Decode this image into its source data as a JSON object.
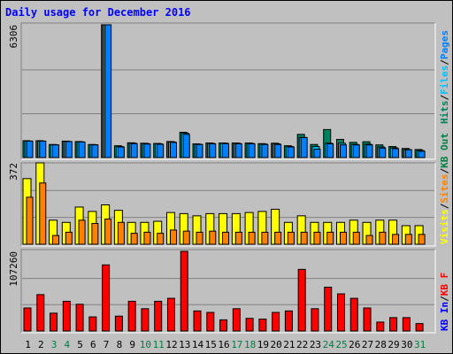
{
  "title": "Daily usage for December 2016",
  "colors": {
    "pages": "#0080ff",
    "files": "#00c0ff",
    "hits": "#00805c",
    "visits": "#ffff00",
    "sites": "#ff8000",
    "kbin": "#0000ff",
    "kbout": "#008040",
    "kbf": "#ff0000",
    "title": "#0000ff",
    "weekend": "#008040",
    "weekday": "#000000"
  },
  "legends": {
    "top": [
      "Hits",
      "Files",
      "Pages"
    ],
    "mid": [
      "Visits",
      "Sites",
      "KB Out"
    ],
    "bot": [
      "KB In",
      "KB F"
    ]
  },
  "chart_data": [
    {
      "type": "bar",
      "panel": "hits-files-pages",
      "ymax_label": "6306",
      "ylim": [
        0,
        6306
      ],
      "categories": [
        "1",
        "2",
        "3",
        "4",
        "5",
        "6",
        "7",
        "8",
        "9",
        "10",
        "11",
        "12",
        "13",
        "14",
        "15",
        "16",
        "17",
        "18",
        "19",
        "20",
        "21",
        "22",
        "23",
        "24",
        "25",
        "26",
        "27",
        "28",
        "29",
        "30",
        "31"
      ],
      "series": [
        {
          "name": "Hits",
          "values": [
            800,
            800,
            620,
            780,
            760,
            620,
            6306,
            560,
            700,
            680,
            670,
            760,
            1200,
            650,
            690,
            690,
            690,
            690,
            660,
            680,
            560,
            1100,
            620,
            1330,
            860,
            720,
            750,
            600,
            520,
            430,
            380
          ]
        },
        {
          "name": "Files",
          "values": [
            780,
            780,
            600,
            760,
            740,
            610,
            6306,
            520,
            680,
            660,
            650,
            740,
            1150,
            630,
            670,
            680,
            670,
            670,
            640,
            650,
            520,
            950,
            520,
            680,
            680,
            620,
            630,
            500,
            460,
            380,
            330
          ]
        },
        {
          "name": "Pages",
          "values": [
            780,
            780,
            600,
            760,
            740,
            600,
            6306,
            500,
            660,
            640,
            630,
            720,
            1100,
            620,
            650,
            660,
            650,
            650,
            620,
            620,
            500,
            950,
            400,
            650,
            600,
            600,
            600,
            450,
            420,
            370,
            300
          ]
        }
      ]
    },
    {
      "type": "bar",
      "panel": "visits-sites",
      "ymax_label": "372",
      "ylim": [
        0,
        372
      ],
      "categories": [
        "1",
        "2",
        "3",
        "4",
        "5",
        "6",
        "7",
        "8",
        "9",
        "10",
        "11",
        "12",
        "13",
        "14",
        "15",
        "16",
        "17",
        "18",
        "19",
        "20",
        "21",
        "22",
        "23",
        "24",
        "25",
        "26",
        "27",
        "28",
        "29",
        "30",
        "31"
      ],
      "series": [
        {
          "name": "Visits",
          "values": [
            300,
            372,
            110,
            100,
            170,
            150,
            180,
            155,
            100,
            100,
            105,
            145,
            140,
            130,
            140,
            140,
            140,
            145,
            150,
            160,
            100,
            130,
            100,
            100,
            100,
            110,
            100,
            110,
            110,
            85,
            85
          ]
        },
        {
          "name": "Sites",
          "values": [
            215,
            280,
            40,
            55,
            110,
            95,
            115,
            100,
            50,
            55,
            50,
            65,
            60,
            55,
            60,
            55,
            55,
            55,
            55,
            55,
            55,
            55,
            55,
            55,
            55,
            55,
            40,
            55,
            45,
            45,
            45
          ]
        }
      ]
    },
    {
      "type": "bar",
      "panel": "kb",
      "ymax_label": "107260",
      "ylim": [
        0,
        107260
      ],
      "categories": [
        "1",
        "2",
        "3",
        "4",
        "5",
        "6",
        "7",
        "8",
        "9",
        "10",
        "11",
        "12",
        "13",
        "14",
        "15",
        "16",
        "17",
        "18",
        "19",
        "20",
        "21",
        "22",
        "23",
        "24",
        "25",
        "26",
        "27",
        "28",
        "29",
        "30",
        "31"
      ],
      "series": [
        {
          "name": "KB F",
          "values": [
            31000,
            49000,
            24000,
            40000,
            36000,
            19000,
            89000,
            20000,
            40000,
            30000,
            40000,
            44000,
            107260,
            27000,
            25000,
            15000,
            30000,
            17000,
            16000,
            25000,
            27000,
            83000,
            30000,
            59000,
            50000,
            44000,
            31000,
            12000,
            18000,
            18000,
            10000
          ]
        }
      ]
    }
  ]
}
